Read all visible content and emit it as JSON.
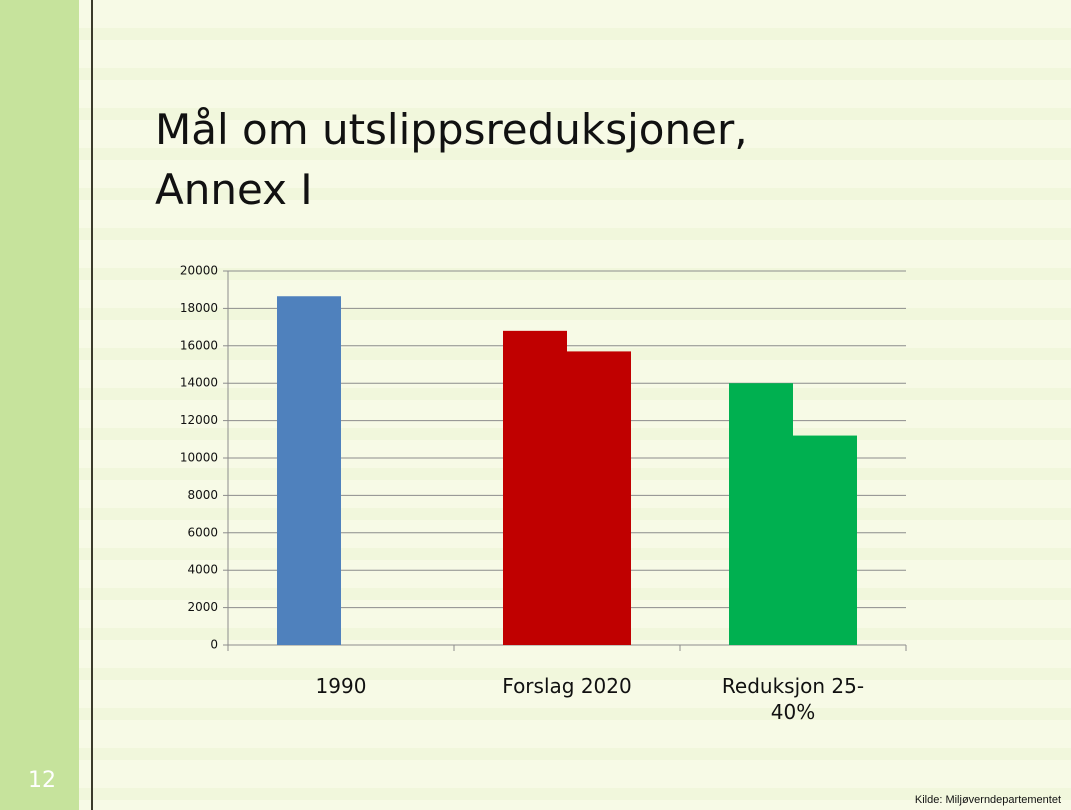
{
  "slide_number": "12",
  "source": "Kilde: Miljøverndepartementet",
  "chart_data": {
    "type": "bar",
    "title": "Mål om utslippsreduksjoner, Annex I",
    "categories": [
      "1990",
      "Forslag 2020",
      "Reduksjon 25-40%"
    ],
    "colors": [
      "#4f81bd",
      "#c00000",
      "#00b050"
    ],
    "series": [
      {
        "values": [
          18650,
          16800,
          14000
        ]
      },
      {
        "values": [
          null,
          15700,
          11200
        ]
      }
    ],
    "ylim": [
      0,
      20000
    ],
    "yticks": [
      0,
      2000,
      4000,
      6000,
      8000,
      10000,
      12000,
      14000,
      16000,
      18000,
      20000
    ],
    "grid": true
  }
}
